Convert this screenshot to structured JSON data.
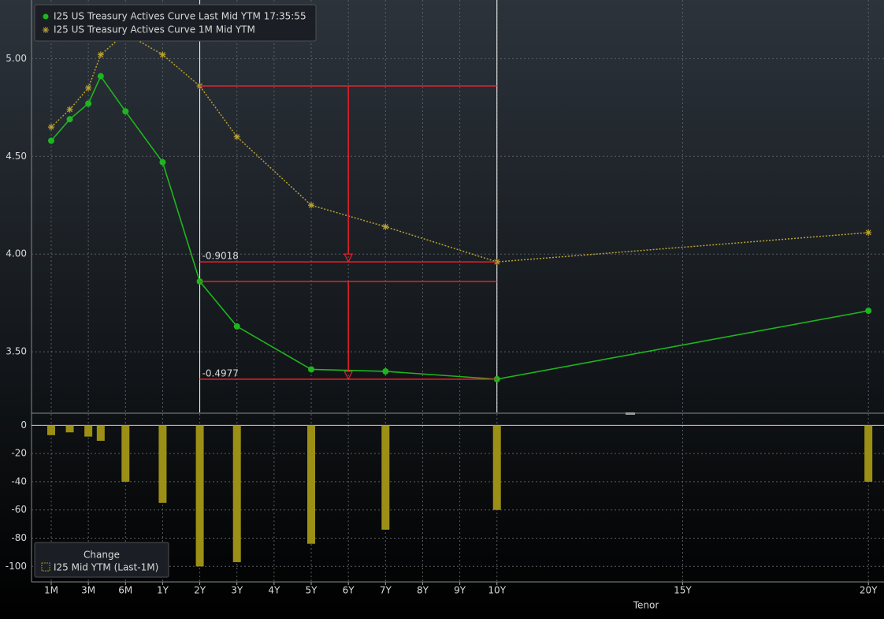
{
  "chart_data": [
    {
      "type": "line",
      "legend": "upper left",
      "grid": true,
      "x": [
        0,
        0.5,
        1,
        1.333,
        2,
        3,
        4,
        5,
        7,
        9,
        12,
        22
      ],
      "xlim": [
        -0.53,
        22.42
      ],
      "ylim": [
        3.19,
        5.3
      ],
      "yticks": [
        {
          "value": 3.5,
          "label": "3.50"
        },
        {
          "value": 4,
          "label": "4.00"
        },
        {
          "value": 4.5,
          "label": "4.50"
        },
        {
          "value": 5,
          "label": "5.00"
        }
      ],
      "series": [
        {
          "name": "I25 US Treasury Actives Curve Last Mid YTM 17:35:55",
          "color": "#1fb51f",
          "style": "solid",
          "marker": "circle",
          "values": [
            4.58,
            4.69,
            4.77,
            4.91,
            4.73,
            4.47,
            3.86,
            3.63,
            3.41,
            3.4,
            3.36,
            3.71
          ]
        },
        {
          "name": "I25 US Treasury Actives Curve 1M Mid YTM",
          "color": "#b8a232",
          "style": "dotted",
          "marker": "star",
          "values": [
            4.65,
            4.74,
            4.85,
            5.02,
            5.13,
            5.02,
            4.86,
            4.6,
            4.25,
            4.14,
            3.96,
            4.11
          ]
        }
      ],
      "spread_labels": [
        -0.9018,
        -0.4977
      ],
      "spread_color": "#e8202a"
    },
    {
      "type": "bar",
      "legend_title": "Change",
      "name": "I25 Mid YTM (Last-1M)",
      "color": "#9c8f16",
      "grid": true,
      "x": [
        0,
        0.5,
        1,
        1.333,
        2,
        3,
        4,
        5,
        7,
        9,
        12,
        22
      ],
      "values": [
        -7,
        -5,
        -8,
        -11,
        -40,
        -55,
        -100,
        -97,
        -84,
        -74,
        -60,
        -40
      ],
      "xlim": [
        -0.53,
        22.42
      ],
      "ylim": [
        -111,
        8
      ],
      "yticks": [
        -100,
        -80,
        -60,
        -40,
        -20,
        0
      ],
      "xlabel": "Tenor",
      "xticks": [
        {
          "value": 0,
          "label": "1M"
        },
        {
          "value": 1,
          "label": "3M"
        },
        {
          "value": 2,
          "label": "6M"
        },
        {
          "value": 3,
          "label": "1Y"
        },
        {
          "value": 4,
          "label": "2Y"
        },
        {
          "value": 5,
          "label": "3Y"
        },
        {
          "value": 6,
          "label": "4Y"
        },
        {
          "value": 7,
          "label": "5Y"
        },
        {
          "value": 8,
          "label": "6Y"
        },
        {
          "value": 9,
          "label": "7Y"
        },
        {
          "value": 10,
          "label": "8Y"
        },
        {
          "value": 11,
          "label": "9Y"
        },
        {
          "value": 12,
          "label": "10Y"
        },
        {
          "value": 17,
          "label": "15Y"
        },
        {
          "value": 22,
          "label": "20Y"
        }
      ]
    }
  ]
}
